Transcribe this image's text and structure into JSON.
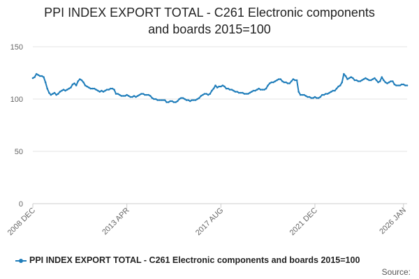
{
  "chart_data": {
    "type": "line",
    "title_lines": [
      "PPI INDEX EXPORT TOTAL - C261 Electronic components",
      "and boards 2015=100"
    ],
    "title": "PPI INDEX EXPORT TOTAL - C261 Electronic components and boards 2015=100",
    "xlabel": "",
    "ylabel": "",
    "ylim": [
      0,
      150
    ],
    "yticks": [
      "0",
      "50",
      "100",
      "150"
    ],
    "xtick_labels": [
      "2008 DEC",
      "2013 APR",
      "2017 AUG",
      "2021 DEC",
      "2026 JAN"
    ],
    "xtick_months": [
      0,
      52,
      104,
      156,
      205
    ],
    "series": [
      {
        "name": "PPI INDEX EXPORT TOTAL - C261 Electronic components and boards 2015=100",
        "start": "2008 DEC",
        "values": [
          120,
          121,
          124,
          123,
          122,
          122,
          121,
          116,
          110,
          106,
          104,
          105,
          106,
          104,
          105,
          107,
          108,
          109,
          108,
          109,
          110,
          111,
          114,
          115,
          113,
          117,
          119,
          118,
          116,
          113,
          112,
          111,
          110,
          110,
          110,
          109,
          108,
          107,
          108,
          107,
          108,
          109,
          109,
          110,
          110,
          109,
          105,
          105,
          104,
          103,
          103,
          103,
          104,
          103,
          102,
          102,
          103,
          102,
          103,
          104,
          105,
          105,
          104,
          104,
          104,
          103,
          101,
          100,
          100,
          99,
          99,
          99,
          99,
          99,
          97,
          97,
          98,
          98,
          97,
          97,
          98,
          100,
          101,
          101,
          100,
          99,
          99,
          98,
          99,
          99,
          99,
          100,
          101,
          103,
          104,
          105,
          105,
          104,
          105,
          108,
          110,
          113,
          111,
          112,
          112,
          113,
          112,
          110,
          110,
          109,
          109,
          108,
          107,
          107,
          106,
          106,
          106,
          105,
          105,
          105,
          106,
          107,
          108,
          108,
          109,
          110,
          109,
          109,
          109,
          110,
          113,
          115,
          116,
          116,
          117,
          118,
          119,
          119,
          117,
          116,
          116,
          115,
          115,
          117,
          119,
          118,
          118,
          107,
          104,
          104,
          104,
          103,
          102,
          102,
          101,
          101,
          102,
          101,
          101,
          102,
          104,
          104,
          105,
          105,
          106,
          107,
          108,
          108,
          110,
          112,
          113,
          116,
          124,
          122,
          119,
          120,
          121,
          120,
          118,
          118,
          117,
          117,
          118,
          119,
          120,
          119,
          118,
          118,
          119,
          120,
          118,
          116,
          117,
          121,
          118,
          116,
          115,
          116,
          117,
          117,
          114,
          113,
          113,
          113,
          114,
          114,
          113,
          113
        ]
      }
    ]
  },
  "colors": {
    "series": "#1f7dba",
    "grid": "#e3e3e3",
    "axis": "#cccccc"
  },
  "source_label": "Source:"
}
